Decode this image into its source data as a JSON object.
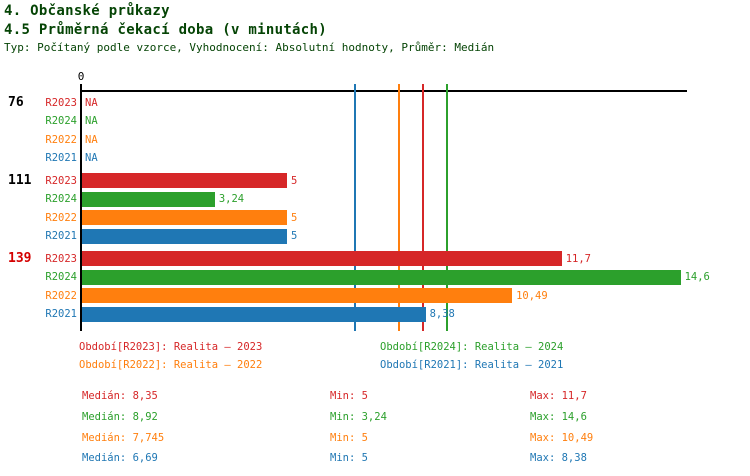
{
  "header": {
    "title": "4. Občanské průkazy",
    "subtitle": "4.5 Průměrná čekací doba (v minutách)",
    "meta": "Typ: Počítaný podle vzorce, Vyhodnocení: Absolutní hodnoty, Průměr: Medián"
  },
  "colors": {
    "heading": "#054405",
    "group_label": "#000000",
    "group_label_highlight": "#d40000",
    "axis": "#000000",
    "series": {
      "R2023": "#d62728",
      "R2024": "#2ca02c",
      "R2022": "#ff7f0e",
      "R2021": "#1f77b4"
    }
  },
  "chart_data": {
    "type": "bar",
    "orientation": "horizontal",
    "axis_zero_label": "0",
    "value_axis_origin": 0,
    "series_order": [
      "R2023",
      "R2024",
      "R2022",
      "R2021"
    ],
    "groups": [
      {
        "label": "76",
        "highlight": false,
        "bars": [
          {
            "series": "R2023",
            "value": null,
            "display": "NA"
          },
          {
            "series": "R2024",
            "value": null,
            "display": "NA"
          },
          {
            "series": "R2022",
            "value": null,
            "display": "NA"
          },
          {
            "series": "R2021",
            "value": null,
            "display": "NA"
          }
        ]
      },
      {
        "label": "111",
        "highlight": false,
        "bars": [
          {
            "series": "R2023",
            "value": 5,
            "display": "5"
          },
          {
            "series": "R2024",
            "value": 3.24,
            "display": "3,24"
          },
          {
            "series": "R2022",
            "value": 5,
            "display": "5"
          },
          {
            "series": "R2021",
            "value": 5,
            "display": "5"
          }
        ]
      },
      {
        "label": "139",
        "highlight": true,
        "bars": [
          {
            "series": "R2023",
            "value": 11.7,
            "display": "11,7"
          },
          {
            "series": "R2024",
            "value": 14.6,
            "display": "14,6"
          },
          {
            "series": "R2022",
            "value": 10.49,
            "display": "10,49"
          },
          {
            "series": "R2021",
            "value": 8.38,
            "display": "8,38"
          }
        ]
      }
    ],
    "median_lines": [
      {
        "series": "R2021",
        "value": 6.69
      },
      {
        "series": "R2022",
        "value": 7.745
      },
      {
        "series": "R2023",
        "value": 8.35
      },
      {
        "series": "R2024",
        "value": 8.92
      }
    ]
  },
  "legend": {
    "items": [
      {
        "series": "R2023",
        "label": "Období[R2023]: Realita – 2023",
        "row": 0,
        "col": 0
      },
      {
        "series": "R2024",
        "label": "Období[R2024]: Realita – 2024",
        "row": 0,
        "col": 1
      },
      {
        "series": "R2022",
        "label": "Období[R2022]: Realita – 2022",
        "row": 1,
        "col": 0
      },
      {
        "series": "R2021",
        "label": "Období[R2021]: Realita – 2021",
        "row": 1,
        "col": 1
      }
    ]
  },
  "stats": {
    "rows": [
      {
        "series": "R2023",
        "median": 8.35,
        "min": 5,
        "max": 11.7,
        "median_label": "Medián: 8,35",
        "min_label": "Min: 5",
        "max_label": "Max: 11,7"
      },
      {
        "series": "R2024",
        "median": 8.92,
        "min": 3.24,
        "max": 14.6,
        "median_label": "Medián: 8,92",
        "min_label": "Min: 3,24",
        "max_label": "Max: 14,6"
      },
      {
        "series": "R2022",
        "median": 7.745,
        "min": 5,
        "max": 10.49,
        "median_label": "Medián: 7,745",
        "min_label": "Min: 5",
        "max_label": "Max: 10,49"
      },
      {
        "series": "R2021",
        "median": 6.69,
        "min": 5,
        "max": 8.38,
        "median_label": "Medián: 6,69",
        "min_label": "Min: 5",
        "max_label": "Max: 8,38"
      }
    ]
  }
}
